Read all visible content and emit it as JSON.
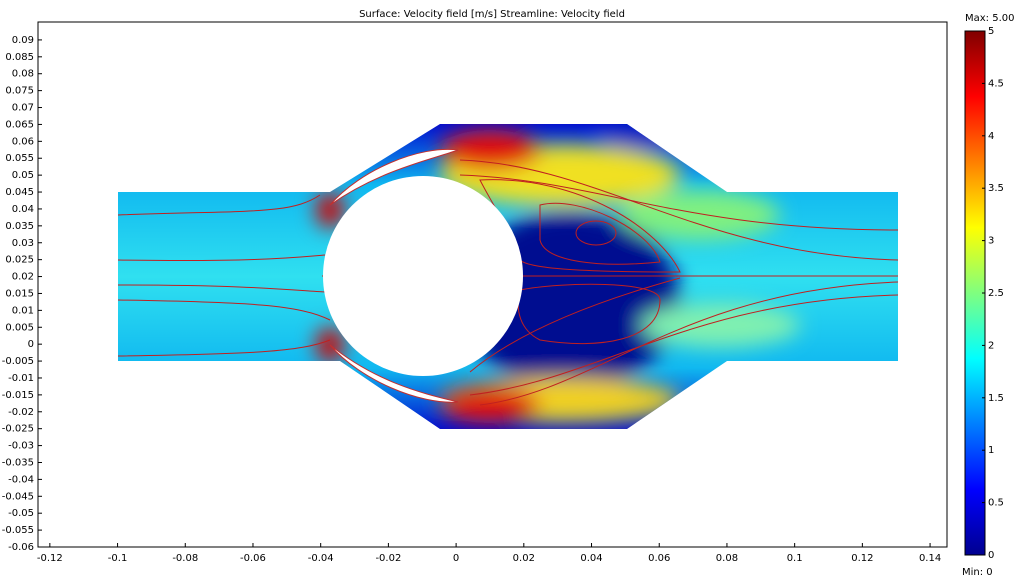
{
  "chart_data": {
    "type": "surface",
    "title": "Surface: Velocity field [m/s]   Streamline: Velocity field",
    "xlim": [
      -0.1235,
      0.145
    ],
    "ylim": [
      -0.06,
      0.0953
    ],
    "xticks": [
      -0.12,
      -0.1,
      -0.08,
      -0.06,
      -0.04,
      -0.02,
      0,
      0.02,
      0.04,
      0.06,
      0.08,
      0.1,
      0.12,
      0.14
    ],
    "yticks": [
      -0.06,
      -0.055,
      -0.05,
      -0.045,
      -0.04,
      -0.035,
      -0.03,
      -0.025,
      -0.02,
      -0.015,
      -0.01,
      -0.005,
      0,
      0.005,
      0.01,
      0.015,
      0.02,
      0.025,
      0.03,
      0.035,
      0.04,
      0.045,
      0.05,
      0.055,
      0.06,
      0.065,
      0.07,
      0.075,
      0.08,
      0.085,
      0.09
    ],
    "colorbar": {
      "clim": [
        0,
        5
      ],
      "ticks": [
        0,
        0.5,
        1,
        1.5,
        2,
        2.5,
        3,
        3.5,
        4,
        4.5,
        5
      ],
      "max_label": "Max: 5.00",
      "min_label": "Min: 0"
    }
  }
}
